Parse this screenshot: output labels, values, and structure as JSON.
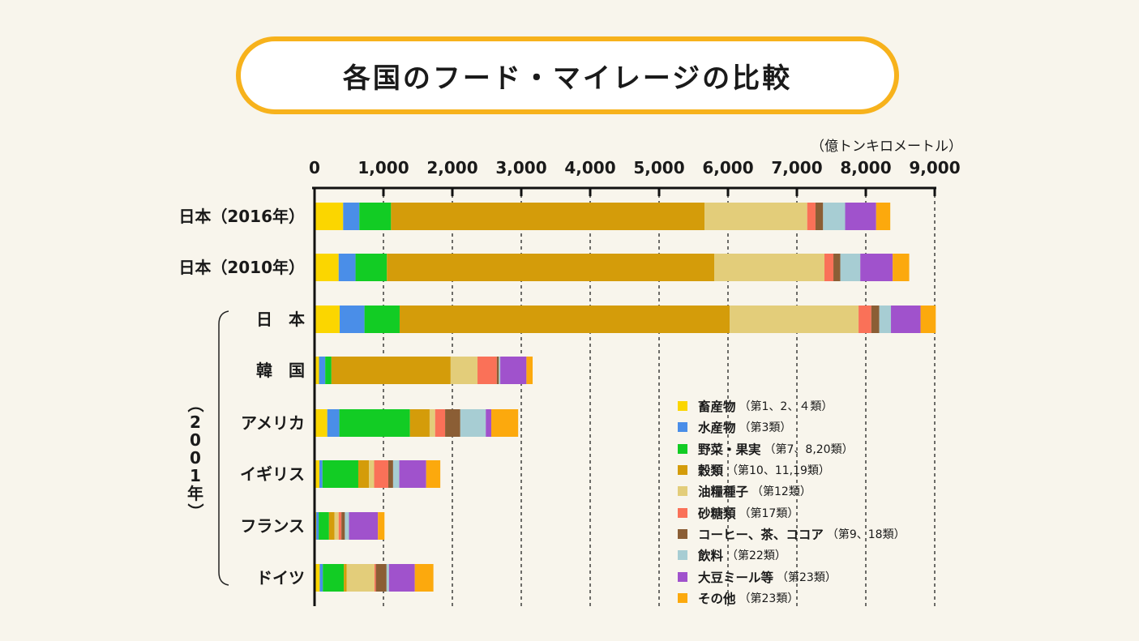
{
  "title": "各国のフード・マイレージの比較",
  "unit": "（億トンキロメートル）",
  "group_label": "（2001年）",
  "chart_data": {
    "type": "bar",
    "orientation": "horizontal",
    "stacked": true,
    "title": "各国のフード・マイレージの比較",
    "unit": "（億トンキロメートル）",
    "xlim": [
      0,
      9000
    ],
    "ticks": [
      "0",
      "1,000",
      "2,000",
      "3,000",
      "4,000",
      "5,000",
      "6,000",
      "7,000",
      "8,000",
      "9,000"
    ],
    "grid": true,
    "legend_position": "bottom-right",
    "categories": [
      "日本（2016年）",
      "日本（2010年）",
      "日　本",
      "韓　国",
      "アメリカ",
      "イギリス",
      "フランス",
      "ドイツ"
    ],
    "series": [
      {
        "name": "畜産物",
        "note": "（第1、2、４類）",
        "color": "#fbd600",
        "values": [
          415,
          350,
          365,
          65,
          185,
          70,
          25,
          75
        ]
      },
      {
        "name": "水産物",
        "note": "（第3類）",
        "color": "#4a8ee8",
        "values": [
          235,
          245,
          360,
          90,
          175,
          45,
          35,
          45
        ]
      },
      {
        "name": "野菜・果実",
        "note": "（第7、8,20類）",
        "color": "#12cc24",
        "values": [
          460,
          455,
          510,
          90,
          1025,
          520,
          150,
          305
        ]
      },
      {
        "name": "穀類",
        "note": "（第10、11,19類）",
        "color": "#d49c0a",
        "values": [
          4550,
          4750,
          4790,
          1730,
          285,
          155,
          80,
          40
        ]
      },
      {
        "name": "油糧種子",
        "note": "（第12類）",
        "color": "#e3cd7a",
        "values": [
          1490,
          1600,
          1870,
          390,
          80,
          75,
          60,
          405
        ]
      },
      {
        "name": "砂糖類",
        "note": "（第17類）",
        "color": "#fa7158",
        "values": [
          120,
          130,
          185,
          280,
          145,
          205,
          40,
          20
        ]
      },
      {
        "name": "コーヒー、茶、ココア",
        "note": "（第9、18類）",
        "color": "#8b5e35",
        "values": [
          110,
          100,
          115,
          30,
          220,
          70,
          50,
          155
        ]
      },
      {
        "name": "飲料",
        "note": "（第22類）",
        "color": "#a7cdd3",
        "values": [
          320,
          290,
          170,
          20,
          370,
          90,
          60,
          35
        ]
      },
      {
        "name": "大豆ミール等",
        "note": "（第23類）",
        "color": "#a052cc",
        "values": [
          450,
          470,
          430,
          380,
          80,
          390,
          420,
          375
        ]
      },
      {
        "name": "その他",
        "note": "（第23類）",
        "color": "#fca90d",
        "values": [
          205,
          240,
          220,
          90,
          390,
          205,
          95,
          270
        ]
      }
    ]
  }
}
